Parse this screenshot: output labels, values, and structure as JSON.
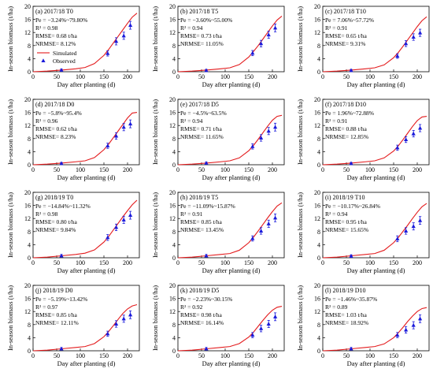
{
  "figure": {
    "y_axis_label": "In-season biomass (t/ha)",
    "x_axis_label": "Day after planting (d)",
    "legend": {
      "simulated": "Simulated",
      "observed": "Observed"
    },
    "colors": {
      "simulated": "#e31a1c",
      "observed": "#1a1adb",
      "frame": "#000000"
    }
  },
  "chart_data": [
    {
      "type": "line",
      "panel": "(a) 2017/18 T0",
      "pe": "Pe = −3.24%~79.80%",
      "r2": "0.98",
      "r2_label": "R² = 0.98",
      "rmse": "RMSE= 0.68 t/ha",
      "nrmse": "NRMSE= 8.12%",
      "legend": true,
      "xlim": [
        0,
        225
      ],
      "ylim": [
        0,
        20
      ],
      "xticks": [
        0,
        50,
        100,
        150,
        200
      ],
      "yticks": [
        0,
        4,
        8,
        12,
        16,
        20
      ],
      "simulated": {
        "x": [
          0,
          30,
          60,
          90,
          110,
          130,
          150,
          160,
          170,
          180,
          190,
          200,
          210,
          220
        ],
        "y": [
          0,
          0.2,
          0.5,
          0.9,
          1.3,
          2.5,
          5.0,
          6.8,
          8.8,
          10.8,
          12.8,
          14.8,
          16.7,
          17.9
        ]
      },
      "observed": {
        "x": [
          60,
          158,
          176,
          192,
          206
        ],
        "y": [
          0.5,
          5.6,
          9.3,
          11.0,
          14.2
        ],
        "err": [
          0.3,
          0.8,
          1.1,
          1.1,
          1.2
        ]
      }
    },
    {
      "type": "line",
      "panel": "(b) 2017/18 T5",
      "pe": "Pe = −3.60%~55.00%",
      "r2": "0.94",
      "r2_label": "R² = 0.94",
      "rmse": "RMSE= 0.73 t/ha",
      "nrmse": "NRMSE= 11.05%",
      "legend": false,
      "xlim": [
        0,
        225
      ],
      "ylim": [
        0,
        20
      ],
      "xticks": [
        0,
        50,
        100,
        150,
        200
      ],
      "yticks": [
        0,
        4,
        8,
        12,
        16,
        20
      ],
      "simulated": {
        "x": [
          0,
          30,
          60,
          90,
          110,
          130,
          150,
          160,
          170,
          180,
          190,
          200,
          210,
          220
        ],
        "y": [
          0,
          0.2,
          0.5,
          0.9,
          1.2,
          2.2,
          4.5,
          6.2,
          8.0,
          10.0,
          12.0,
          14.0,
          15.8,
          17.0
        ]
      },
      "observed": {
        "x": [
          60,
          158,
          176,
          192,
          206
        ],
        "y": [
          0.4,
          5.7,
          8.6,
          11.3,
          13.4
        ],
        "err": [
          0.3,
          0.8,
          1.0,
          1.1,
          1.2
        ]
      }
    },
    {
      "type": "line",
      "panel": "(c) 2017/18 T10",
      "pe": "Pe = 7.06%~57.72%",
      "r2": "0.91",
      "r2_label": "R² = 0.91",
      "rmse": "RMSE= 0.65 t/ha",
      "nrmse": "NRMSE= 9.31%",
      "legend": false,
      "xlim": [
        0,
        225
      ],
      "ylim": [
        0,
        20
      ],
      "xticks": [
        0,
        50,
        100,
        150,
        200
      ],
      "yticks": [
        0,
        4,
        8,
        12,
        16,
        20
      ],
      "simulated": {
        "x": [
          0,
          30,
          60,
          90,
          110,
          130,
          150,
          160,
          170,
          180,
          190,
          200,
          210,
          220
        ],
        "y": [
          0,
          0.2,
          0.5,
          0.9,
          1.2,
          2.1,
          4.3,
          5.9,
          7.8,
          9.8,
          11.8,
          13.8,
          15.6,
          16.8
        ]
      },
      "observed": {
        "x": [
          60,
          158,
          176,
          192,
          206
        ],
        "y": [
          0.4,
          4.8,
          8.6,
          10.6,
          11.9
        ],
        "err": [
          0.3,
          0.7,
          0.9,
          1.0,
          1.1
        ]
      }
    },
    {
      "type": "line",
      "panel": "(d) 2017/18 D0",
      "pe": "Pe = −5.8%~95.4%",
      "r2": "0.96",
      "r2_label": "R² = 0.96",
      "rmse": "RMSE= 0.62 t/ha",
      "nrmse": "NRMSE= 8.23%",
      "legend": false,
      "xlim": [
        0,
        225
      ],
      "ylim": [
        0,
        20
      ],
      "xticks": [
        0,
        50,
        100,
        150,
        200
      ],
      "yticks": [
        0,
        4,
        8,
        12,
        16,
        20
      ],
      "simulated": {
        "x": [
          0,
          30,
          60,
          90,
          110,
          130,
          150,
          160,
          170,
          180,
          190,
          200,
          210,
          220
        ],
        "y": [
          0,
          0.2,
          0.5,
          0.9,
          1.2,
          2.2,
          4.6,
          6.3,
          8.3,
          10.3,
          12.3,
          14.3,
          15.8,
          16.0
        ]
      },
      "observed": {
        "x": [
          60,
          158,
          176,
          192,
          206
        ],
        "y": [
          0.4,
          5.8,
          8.8,
          11.5,
          12.5
        ],
        "err": [
          0.3,
          0.8,
          1.0,
          1.1,
          1.2
        ]
      }
    },
    {
      "type": "line",
      "panel": "(e) 2017/18 D5",
      "pe": "Pe = −4.5%~63.5%",
      "r2": "0.94",
      "r2_label": "R² = 0.94",
      "rmse": "RMSE= 0.71 t/ha",
      "nrmse": "NRMSE= 11.65%",
      "legend": false,
      "xlim": [
        0,
        225
      ],
      "ylim": [
        0,
        20
      ],
      "xticks": [
        0,
        50,
        100,
        150,
        200
      ],
      "yticks": [
        0,
        4,
        8,
        12,
        16,
        20
      ],
      "simulated": {
        "x": [
          0,
          30,
          60,
          90,
          110,
          130,
          150,
          160,
          170,
          180,
          190,
          200,
          210,
          220
        ],
        "y": [
          0,
          0.2,
          0.5,
          0.9,
          1.2,
          2.1,
          4.3,
          5.9,
          7.8,
          9.8,
          11.8,
          13.6,
          14.8,
          15.1
        ]
      },
      "observed": {
        "x": [
          60,
          158,
          176,
          192,
          206
        ],
        "y": [
          0.5,
          5.6,
          8.2,
          10.3,
          11.5
        ],
        "err": [
          0.3,
          0.8,
          1.0,
          1.1,
          1.2
        ]
      }
    },
    {
      "type": "line",
      "panel": "(f) 2017/18 D10",
      "pe": "Pe = 1.96%~72.88%",
      "r2": "0.91",
      "r2_label": "R² = 0.91",
      "rmse": "RMSE= 0.88 t/ha",
      "nrmse": "NRMSE= 12.85%",
      "legend": false,
      "xlim": [
        0,
        225
      ],
      "ylim": [
        0,
        20
      ],
      "xticks": [
        0,
        50,
        100,
        150,
        200
      ],
      "yticks": [
        0,
        4,
        8,
        12,
        16,
        20
      ],
      "simulated": {
        "x": [
          0,
          30,
          60,
          90,
          110,
          130,
          150,
          160,
          170,
          180,
          190,
          200,
          210,
          220
        ],
        "y": [
          0,
          0.2,
          0.5,
          0.9,
          1.2,
          2.1,
          4.2,
          5.8,
          7.7,
          9.7,
          11.7,
          13.5,
          14.6,
          14.8
        ]
      },
      "observed": {
        "x": [
          60,
          158,
          176,
          192,
          206
        ],
        "y": [
          0.4,
          5.2,
          7.7,
          9.5,
          11.2
        ],
        "err": [
          0.3,
          0.8,
          0.9,
          1.0,
          1.1
        ]
      }
    },
    {
      "type": "line",
      "panel": "(g) 2018/19 T0",
      "pe": "Pe = −14.84%~11.32%",
      "r2": "0.98",
      "r2_label": "R² = 0.98",
      "rmse": "RMSE= 0.80 t/ha",
      "nrmse": "NRMSE= 9.84%",
      "legend": false,
      "xlim": [
        0,
        225
      ],
      "ylim": [
        0,
        20
      ],
      "xticks": [
        0,
        50,
        100,
        150,
        200
      ],
      "yticks": [
        0,
        4,
        8,
        12,
        16,
        20
      ],
      "simulated": {
        "x": [
          0,
          30,
          60,
          90,
          110,
          130,
          150,
          160,
          170,
          180,
          190,
          200,
          210,
          220
        ],
        "y": [
          0,
          0.2,
          0.6,
          1.0,
          1.4,
          2.4,
          4.8,
          6.5,
          8.5,
          10.5,
          12.5,
          14.4,
          16.2,
          17.6
        ]
      },
      "observed": {
        "x": [
          60,
          158,
          176,
          192,
          206
        ],
        "y": [
          0.6,
          6.2,
          9.3,
          11.6,
          13.0
        ],
        "err": [
          0.4,
          0.9,
          1.0,
          1.1,
          1.2
        ]
      }
    },
    {
      "type": "line",
      "panel": "(h) 2018/19 T5",
      "pe": "Pe = −11.09%~15.87%",
      "r2": "0.91",
      "r2_label": "R² = 0.91",
      "rmse": "RMSE= 0.85 t/ha",
      "nrmse": "NRMSE= 13.45%",
      "legend": false,
      "xlim": [
        0,
        225
      ],
      "ylim": [
        0,
        20
      ],
      "xticks": [
        0,
        50,
        100,
        150,
        200
      ],
      "yticks": [
        0,
        4,
        8,
        12,
        16,
        20
      ],
      "simulated": {
        "x": [
          0,
          30,
          60,
          90,
          110,
          130,
          150,
          160,
          170,
          180,
          190,
          200,
          210,
          220
        ],
        "y": [
          0,
          0.2,
          0.6,
          1.0,
          1.3,
          2.3,
          4.6,
          6.3,
          8.2,
          10.2,
          12.2,
          14.1,
          15.8,
          16.8
        ]
      },
      "observed": {
        "x": [
          60,
          158,
          176,
          192,
          206
        ],
        "y": [
          0.6,
          5.9,
          8.2,
          10.4,
          12.2
        ],
        "err": [
          0.4,
          0.8,
          1.0,
          1.1,
          1.2
        ]
      }
    },
    {
      "type": "line",
      "panel": "(i) 2018/19 T10",
      "pe": "Pe = −10.17%~26.84%",
      "r2": "0.94",
      "r2_label": "R² = 0.94",
      "rmse": "RMSE= 0.95 t/ha",
      "nrmse": "NRMSE= 15.65%",
      "legend": false,
      "xlim": [
        0,
        225
      ],
      "ylim": [
        0,
        20
      ],
      "xticks": [
        0,
        50,
        100,
        150,
        200
      ],
      "yticks": [
        0,
        4,
        8,
        12,
        16,
        20
      ],
      "simulated": {
        "x": [
          0,
          30,
          60,
          90,
          110,
          130,
          150,
          160,
          170,
          180,
          190,
          200,
          210,
          220
        ],
        "y": [
          0,
          0.2,
          0.6,
          1.0,
          1.3,
          2.3,
          4.6,
          6.2,
          8.1,
          10.0,
          12.0,
          13.9,
          15.6,
          16.6
        ]
      },
      "observed": {
        "x": [
          60,
          158,
          176,
          192,
          206
        ],
        "y": [
          0.5,
          5.8,
          8.2,
          9.6,
          11.4
        ],
        "err": [
          0.4,
          0.9,
          1.0,
          1.1,
          1.2
        ]
      }
    },
    {
      "type": "line",
      "panel": "(j) 2018/19 D0",
      "pe": "Pe = −5.19%~13.42%",
      "r2": "0.97",
      "r2_label": "R² = 0.97",
      "rmse": "RMSE= 0.85 t/ha",
      "nrmse": "NRMSE= 12.11%",
      "legend": false,
      "xlim": [
        0,
        225
      ],
      "ylim": [
        0,
        20
      ],
      "xticks": [
        0,
        50,
        100,
        150,
        200
      ],
      "yticks": [
        0,
        4,
        8,
        12,
        16,
        20
      ],
      "simulated": {
        "x": [
          0,
          30,
          60,
          90,
          110,
          130,
          150,
          160,
          170,
          180,
          190,
          200,
          210,
          220
        ],
        "y": [
          0,
          0.2,
          0.6,
          1.0,
          1.3,
          2.2,
          4.3,
          5.9,
          7.7,
          9.6,
          11.4,
          12.8,
          13.7,
          14.1
        ]
      },
      "observed": {
        "x": [
          60,
          158,
          176,
          192,
          206
        ],
        "y": [
          0.6,
          5.2,
          8.2,
          9.8,
          11.0
        ],
        "err": [
          0.4,
          0.8,
          1.0,
          1.1,
          1.2
        ]
      }
    },
    {
      "type": "line",
      "panel": "(k) 2018/19 D5",
      "pe": "Pe = −2.23%~30.15%",
      "r2": "0.92",
      "r2_label": "R² = 0.92",
      "rmse": "RMSE= 0.98 t/ha",
      "nrmse": "NRMSE= 16.14%",
      "legend": false,
      "xlim": [
        0,
        225
      ],
      "ylim": [
        0,
        20
      ],
      "xticks": [
        0,
        50,
        100,
        150,
        200
      ],
      "yticks": [
        0,
        4,
        8,
        12,
        16,
        20
      ],
      "simulated": {
        "x": [
          0,
          30,
          60,
          90,
          110,
          130,
          150,
          160,
          170,
          180,
          190,
          200,
          210,
          220
        ],
        "y": [
          0,
          0.2,
          0.6,
          1.0,
          1.3,
          2.2,
          4.2,
          5.7,
          7.5,
          9.3,
          11.0,
          12.4,
          13.3,
          13.6
        ]
      },
      "observed": {
        "x": [
          60,
          158,
          176,
          192,
          206
        ],
        "y": [
          0.6,
          4.8,
          6.8,
          8.2,
          10.4
        ],
        "err": [
          0.4,
          0.8,
          1.0,
          1.1,
          1.2
        ]
      }
    },
    {
      "type": "line",
      "panel": "(l) 2018/19 D10",
      "pe": "Pe = −1.46%~35.87%",
      "r2": "0.89",
      "r2_label": "R² = 0.89",
      "rmse": "RMSE= 1.03 t/ha",
      "nrmse": "NRMSE= 18.92%",
      "legend": false,
      "xlim": [
        0,
        225
      ],
      "ylim": [
        0,
        20
      ],
      "xticks": [
        0,
        50,
        100,
        150,
        200
      ],
      "yticks": [
        0,
        4,
        8,
        12,
        16,
        20
      ],
      "simulated": {
        "x": [
          0,
          30,
          60,
          90,
          110,
          130,
          150,
          160,
          170,
          180,
          190,
          200,
          210,
          220
        ],
        "y": [
          0,
          0.2,
          0.6,
          1.0,
          1.3,
          2.1,
          4.0,
          5.5,
          7.2,
          9.0,
          10.6,
          12.0,
          12.9,
          13.2
        ]
      },
      "observed": {
        "x": [
          60,
          158,
          176,
          192,
          206
        ],
        "y": [
          0.6,
          4.8,
          6.4,
          7.8,
          9.8
        ],
        "err": [
          0.4,
          0.8,
          1.0,
          1.1,
          1.2
        ]
      }
    }
  ]
}
